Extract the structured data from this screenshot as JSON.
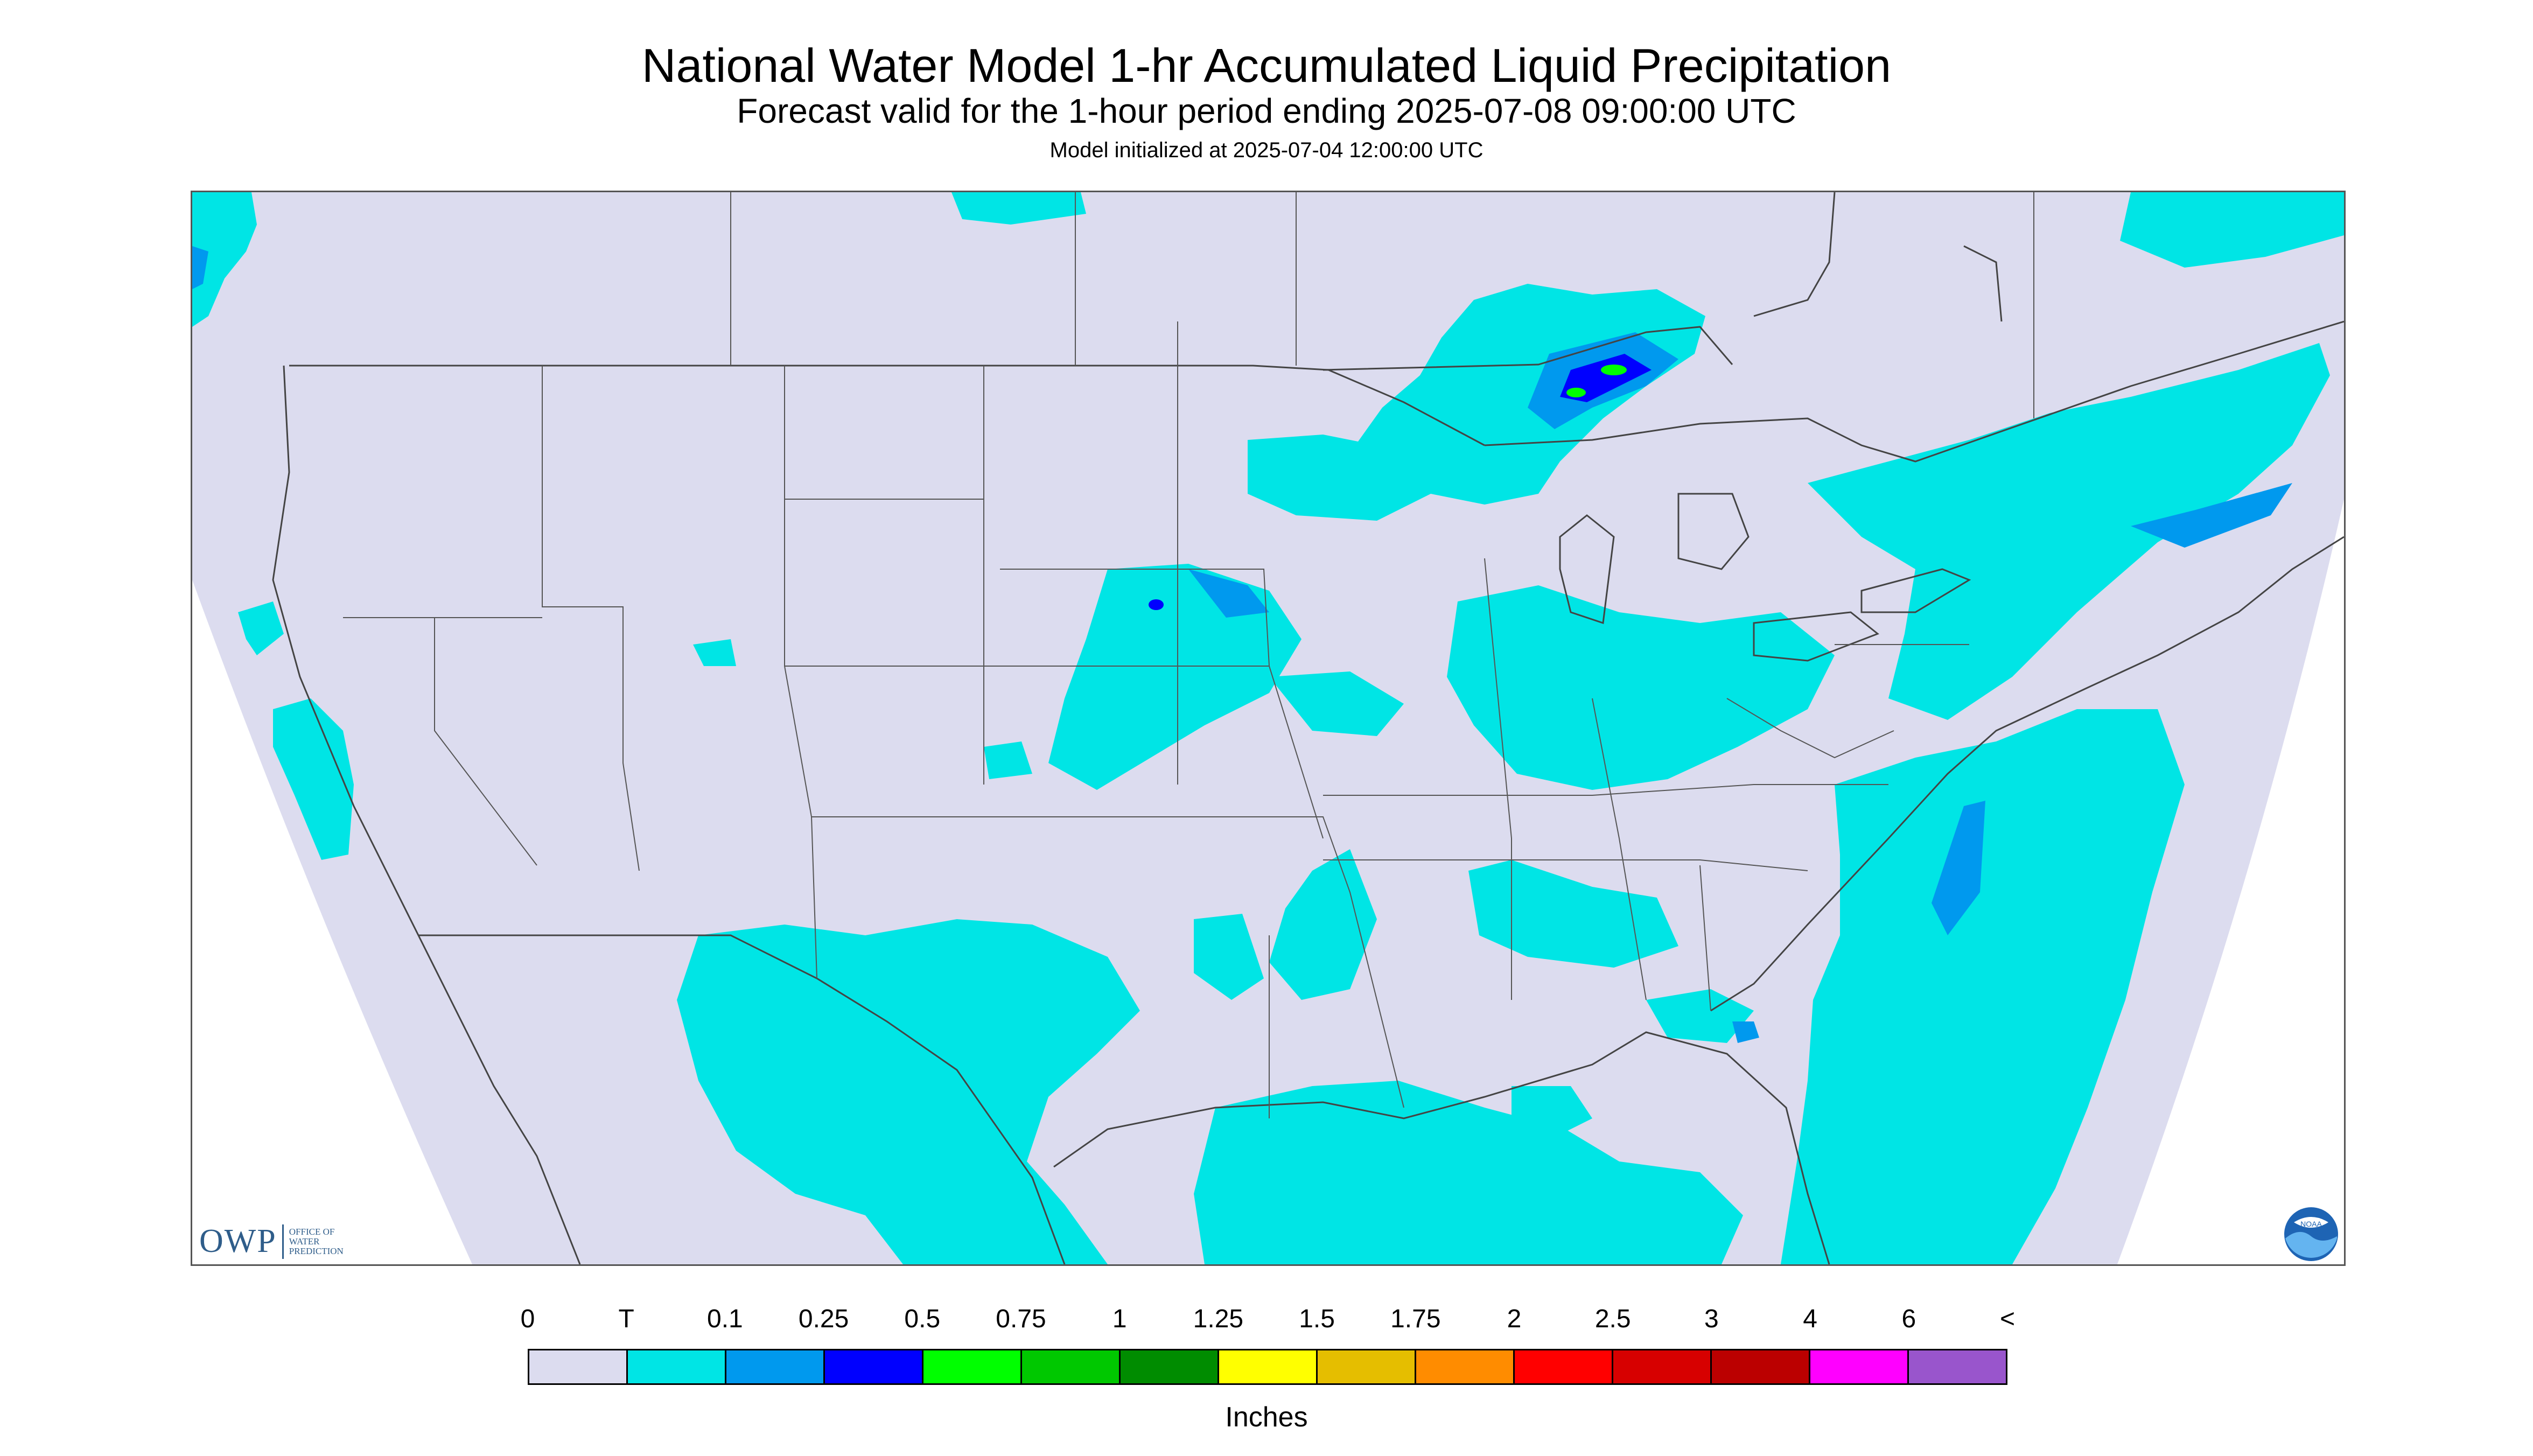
{
  "title": "National Water Model 1-hr Accumulated Liquid Precipitation",
  "subtitle": "Forecast valid for the 1-hour period ending 2025-07-08 09:00:00 UTC",
  "initialized": "Model initialized at 2025-07-04 12:00:00 UTC",
  "map": {
    "type": "precipitation-map",
    "region": "CONUS",
    "no_data_color": "#ffffff",
    "background_color": "#dcdcef"
  },
  "legend": {
    "labels": [
      "0",
      "T",
      "0.1",
      "0.25",
      "0.5",
      "0.75",
      "1",
      "1.25",
      "1.5",
      "1.75",
      "2",
      "2.5",
      "3",
      "4",
      "6",
      "<"
    ],
    "colors": [
      "#dcdcef",
      "#00e5e5",
      "#0099ee",
      "#0000ff",
      "#00ff00",
      "#00c800",
      "#008c00",
      "#ffff00",
      "#e5be00",
      "#ff8c00",
      "#ff0000",
      "#d70000",
      "#bb0000",
      "#ff00ff",
      "#9955cc"
    ],
    "units": "Inches"
  },
  "logos": {
    "owp_mark": "OWP",
    "owp_text": [
      "OFFICE OF",
      "WATER",
      "PREDICTION"
    ],
    "noaa_text": "NOAA"
  }
}
